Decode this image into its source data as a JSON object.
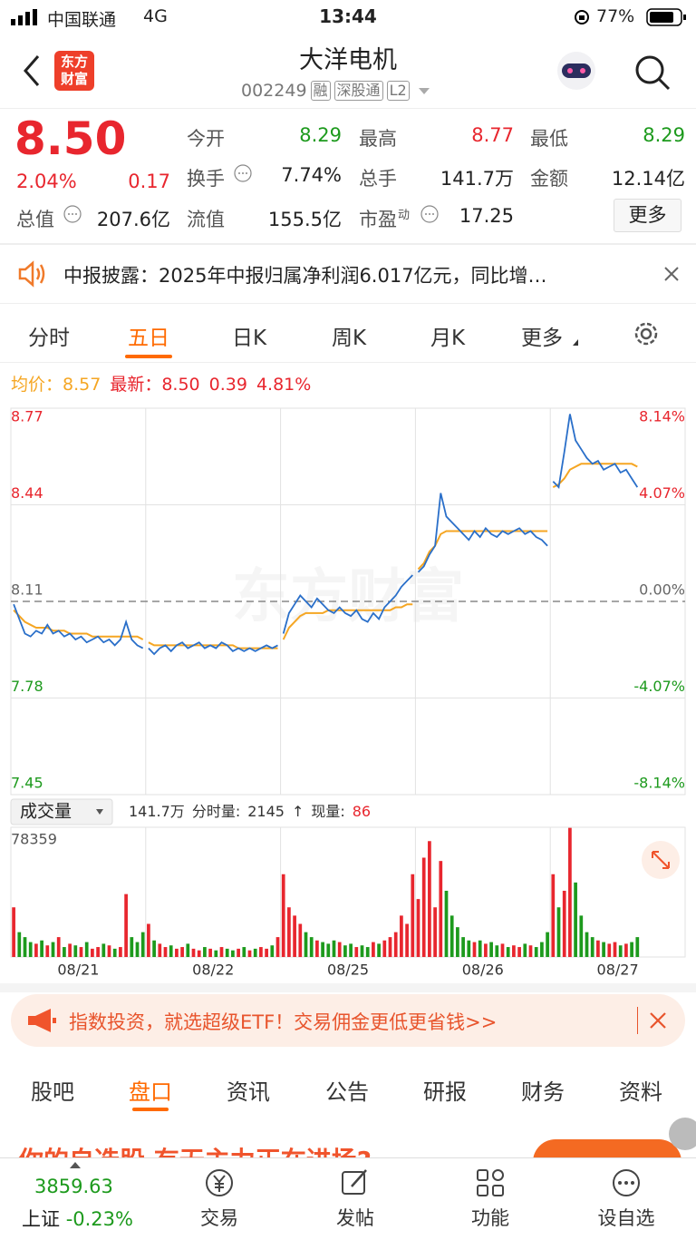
{
  "status": {
    "carrier": "中国联通",
    "network": "4G",
    "time": "13:44",
    "battery": "77%"
  },
  "header": {
    "logo": "东方财富",
    "title": "大洋电机",
    "code": "002249",
    "tags": [
      "融",
      "深股通",
      "L2"
    ]
  },
  "quote": {
    "price": "8.50",
    "pct": "2.04%",
    "change": "0.17",
    "total": {
      "label": "总值",
      "value": "207.6亿"
    },
    "more": "更多",
    "stats": [
      {
        "label": "今开",
        "value": "8.29",
        "color": "#1d9a1d"
      },
      {
        "label": "最高",
        "value": "8.77",
        "color": "#e8262e"
      },
      {
        "label": "最低",
        "value": "8.29",
        "color": "#1d9a1d"
      },
      {
        "label": "换手",
        "value": "7.74%",
        "color": "#222222",
        "info": true
      },
      {
        "label": "总手",
        "value": "141.7万",
        "color": "#222222"
      },
      {
        "label": "金额",
        "value": "12.14亿",
        "color": "#222222"
      },
      {
        "label": "流值",
        "value": "155.5亿",
        "color": "#222222"
      },
      {
        "label": "市盈",
        "sup": "动",
        "value": "17.25",
        "color": "#222222",
        "info": true
      }
    ]
  },
  "notice": "中报披露：2025年中报归属净利润6.017亿元，同比增…",
  "tabs": {
    "items": [
      "分时",
      "五日",
      "日K",
      "周K",
      "月K",
      "更多"
    ],
    "active": 1
  },
  "chart": {
    "watermark": "东方财富",
    "legend": {
      "avg_label": "均价：",
      "avg": "8.57",
      "last_label": "最新：",
      "last": "8.50",
      "change": "0.39",
      "pct": "4.81%"
    },
    "ylim": [
      7.45,
      8.77
    ],
    "yticks": [
      7.45,
      7.78,
      8.11,
      8.44,
      8.77
    ],
    "y2lim": [
      -8.14,
      8.14
    ],
    "y2ticks": [
      {
        "value": -8.14,
        "label": "-8.14%"
      },
      {
        "value": -4.07,
        "label": "-4.07%"
      },
      {
        "value": 0,
        "label": "0.00%"
      },
      {
        "value": 4.07,
        "label": "4.07%"
      },
      {
        "value": 8.14,
        "label": "8.14%"
      }
    ],
    "price_color": "#2a6fc9",
    "avg_color": "#f5a623",
    "volume": {
      "label": "成交量",
      "total": "141.7万",
      "tick_label": "分时量:",
      "tick": "2145",
      "arrow": "↑",
      "now_label": "现量:",
      "now": "86",
      "ylim": [
        0,
        78359
      ],
      "yticks": [
        78359
      ],
      "up_color": "#e8262e",
      "down_color": "#1d9a1d"
    },
    "days": [
      {
        "date": "08/21",
        "price": [
          8.1,
          8.05,
          8.0,
          7.99,
          8.01,
          8.0,
          8.03,
          8.0,
          8.01,
          7.99,
          8.0,
          7.98,
          7.99,
          7.97,
          7.98,
          7.99,
          7.97,
          7.98,
          7.96,
          7.98,
          8.04,
          7.98,
          7.96,
          7.95
        ],
        "avg": [
          8.08,
          8.06,
          8.04,
          8.03,
          8.02,
          8.02,
          8.02,
          8.01,
          8.01,
          8.01,
          8.0,
          8.0,
          8.0,
          8.0,
          7.99,
          7.99,
          7.99,
          7.99,
          7.99,
          7.99,
          7.99,
          7.99,
          7.99,
          7.98
        ],
        "volume": [
          30000,
          15000,
          12000,
          9000,
          8000,
          10000,
          7000,
          9000,
          12000,
          6000,
          8000,
          7000,
          6000,
          9000,
          5000,
          6000,
          8000,
          7000,
          5000,
          6000,
          38000,
          12000,
          9000,
          15000
        ]
      },
      {
        "date": "08/22",
        "price": [
          7.95,
          7.93,
          7.95,
          7.96,
          7.94,
          7.96,
          7.97,
          7.95,
          7.96,
          7.97,
          7.95,
          7.96,
          7.95,
          7.97,
          7.96,
          7.94,
          7.95,
          7.94,
          7.95,
          7.94,
          7.95,
          7.96,
          7.95,
          7.96
        ],
        "avg": [
          7.97,
          7.96,
          7.96,
          7.96,
          7.96,
          7.96,
          7.96,
          7.96,
          7.96,
          7.96,
          7.96,
          7.96,
          7.96,
          7.96,
          7.96,
          7.96,
          7.95,
          7.95,
          7.95,
          7.95,
          7.95,
          7.95,
          7.95,
          7.95
        ],
        "volume": [
          20000,
          10000,
          8000,
          6000,
          7000,
          5000,
          6000,
          8000,
          5000,
          4000,
          6000,
          5000,
          4000,
          6000,
          5000,
          4000,
          5000,
          6000,
          4000,
          5000,
          6000,
          5000,
          7000,
          12000
        ]
      },
      {
        "date": "08/25",
        "price": [
          8.0,
          8.07,
          8.1,
          8.13,
          8.11,
          8.09,
          8.12,
          8.1,
          8.08,
          8.07,
          8.09,
          8.07,
          8.06,
          8.08,
          8.05,
          8.04,
          8.07,
          8.05,
          8.09,
          8.11,
          8.13,
          8.16,
          8.18,
          8.2
        ],
        "avg": [
          7.98,
          8.02,
          8.04,
          8.06,
          8.07,
          8.07,
          8.07,
          8.07,
          8.08,
          8.08,
          8.08,
          8.08,
          8.08,
          8.08,
          8.08,
          8.08,
          8.08,
          8.08,
          8.08,
          8.08,
          8.09,
          8.09,
          8.1,
          8.1
        ],
        "volume": [
          50000,
          30000,
          25000,
          20000,
          15000,
          12000,
          10000,
          9000,
          8000,
          10000,
          9000,
          7000,
          8000,
          6000,
          7000,
          6000,
          9000,
          8000,
          10000,
          12000,
          15000,
          25000,
          20000,
          50000
        ]
      },
      {
        "date": "08/26",
        "price": [
          8.21,
          8.23,
          8.27,
          8.3,
          8.48,
          8.4,
          8.38,
          8.36,
          8.34,
          8.32,
          8.35,
          8.33,
          8.36,
          8.34,
          8.33,
          8.35,
          8.34,
          8.35,
          8.36,
          8.34,
          8.35,
          8.33,
          8.32,
          8.3
        ],
        "avg": [
          8.22,
          8.24,
          8.28,
          8.3,
          8.34,
          8.35,
          8.35,
          8.35,
          8.35,
          8.35,
          8.35,
          8.35,
          8.35,
          8.35,
          8.35,
          8.35,
          8.35,
          8.35,
          8.35,
          8.35,
          8.35,
          8.35,
          8.35,
          8.35
        ],
        "volume": [
          35000,
          60000,
          70000,
          30000,
          58000,
          40000,
          25000,
          18000,
          12000,
          10000,
          9000,
          10000,
          8000,
          9000,
          7000,
          8000,
          6000,
          7000,
          6000,
          8000,
          7000,
          6000,
          9000,
          15000
        ]
      },
      {
        "date": "08/27",
        "price": [
          8.52,
          8.5,
          8.62,
          8.75,
          8.66,
          8.63,
          8.6,
          8.58,
          8.59,
          8.56,
          8.57,
          8.58,
          8.55,
          8.56,
          8.53,
          8.5
        ],
        "avg": [
          8.5,
          8.51,
          8.53,
          8.56,
          8.57,
          8.58,
          8.58,
          8.58,
          8.58,
          8.58,
          8.58,
          8.58,
          8.58,
          8.58,
          8.58,
          8.57
        ],
        "volume": [
          50000,
          30000,
          40000,
          78000,
          45000,
          25000,
          15000,
          12000,
          10000,
          9000,
          8000,
          9000,
          7000,
          8000,
          9000,
          12000
        ]
      }
    ]
  },
  "ad": "指数投资，就选超级ETF！交易佣金更低更省钱>>",
  "bottom_tabs": {
    "items": [
      "股吧",
      "盘口",
      "资讯",
      "公告",
      "研报",
      "财务",
      "资料"
    ],
    "active": 1
  },
  "promo": "你的自选股 有无主力正在进场?",
  "nav": {
    "index_value": "3859.63",
    "index_name": "上证",
    "index_pct": "-0.23%",
    "items": [
      "交易",
      "发帖",
      "功能",
      "设自选"
    ]
  }
}
